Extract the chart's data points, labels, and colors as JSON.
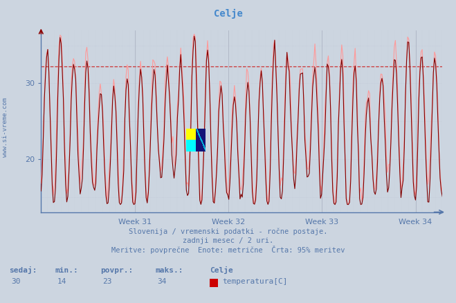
{
  "title": "Celje",
  "bg_color": "#ccd5e0",
  "plot_bg_color": "#ccd5e0",
  "line_color_dark": "#800000",
  "line_color_red": "#cc0000",
  "line_color_pink": "#ff9999",
  "grid_color": "#aab0c0",
  "grid_dotted_color": "#c0c8d8",
  "axis_color": "#5577aa",
  "text_color": "#5577aa",
  "ylabel_text": "www.si-vreme.com",
  "xlabel_labels": [
    "Week 31",
    "Week 32",
    "Week 33",
    "Week 34"
  ],
  "ylim": [
    13,
    37
  ],
  "yticks": [
    20,
    30
  ],
  "hline_y": 32.2,
  "hline_color": "#cc2222",
  "footer_line1": "Slovenija / vremenski podatki - ročne postaje.",
  "footer_line2": "zadnji mesec / 2 uri.",
  "footer_line3": "Meritve: povprečne  Enote: metrične  Črta: 95% meritev",
  "legend_labels": [
    "sedaj:",
    "min.:",
    "povpr.:",
    "maks.:",
    "Celje"
  ],
  "legend_values": [
    "30",
    "14",
    "23",
    "34",
    "temperatura[C]"
  ],
  "n_points": 360,
  "seed": 42
}
